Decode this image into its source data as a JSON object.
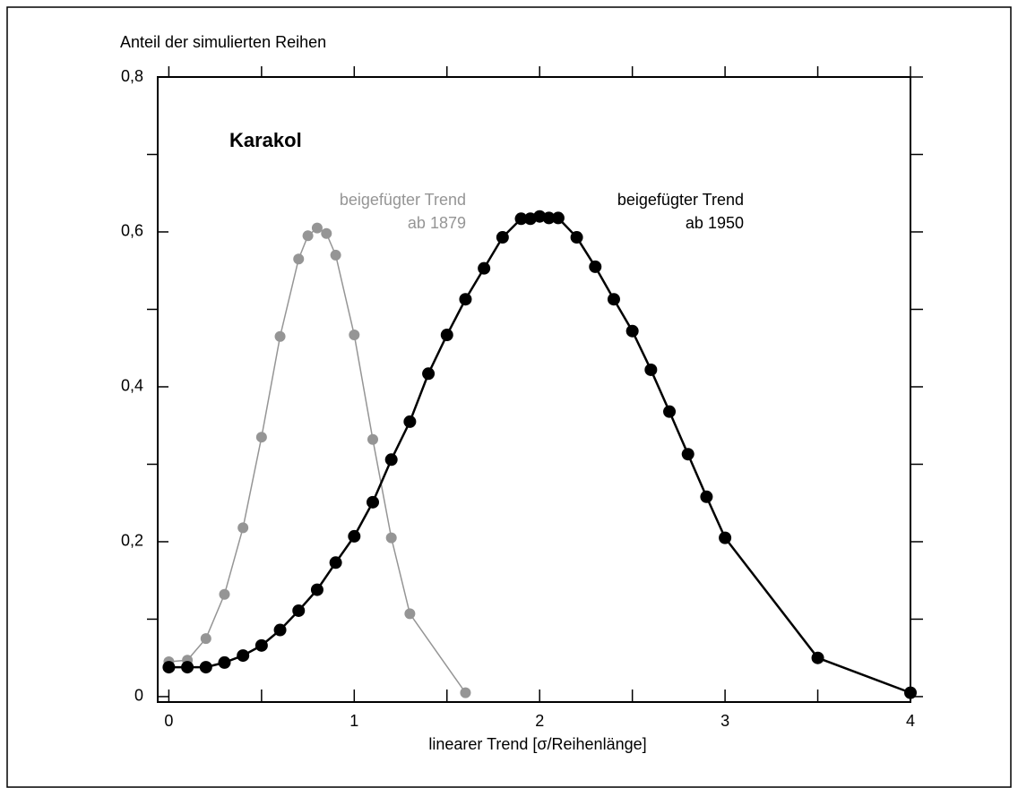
{
  "chart_data": {
    "type": "line",
    "title": "Karakol",
    "ylabel": "Anteil der simulierten Reihen",
    "xlabel": "linearer Trend [σ/Reihenlänge]",
    "xlim": [
      -0.06,
      4
    ],
    "ylim": [
      -0.007,
      0.8
    ],
    "xticks": [
      0,
      1,
      2,
      3,
      4
    ],
    "xminorticks": [
      0.5,
      1.5,
      2.5,
      3.5
    ],
    "yticks": [
      0,
      {
        "value": 0.2,
        "label": "0,2"
      },
      {
        "value": 0.4,
        "label": "0,4"
      },
      {
        "value": 0.6,
        "label": "0,6"
      },
      {
        "value": 0.8,
        "label": "0,8"
      }
    ],
    "yminorticks": [
      0.1,
      0.3,
      0.5,
      0.7
    ],
    "annotations": [
      {
        "lines": [
          "beigefügter Trend",
          "ab 1879"
        ],
        "color": "#959595"
      },
      {
        "lines": [
          "beigefügter Trend",
          "ab 1950"
        ],
        "color": "#000000"
      }
    ],
    "series": [
      {
        "color": "#959595",
        "x": [
          0,
          0.1,
          0.2,
          0.3,
          0.4,
          0.5,
          0.6,
          0.7,
          0.75,
          0.8,
          0.85,
          0.9,
          1.0,
          1.1,
          1.2,
          1.3,
          1.6
        ],
        "values": [
          0.045,
          0.047,
          0.075,
          0.132,
          0.218,
          0.335,
          0.465,
          0.565,
          0.595,
          0.605,
          0.598,
          0.57,
          0.467,
          0.332,
          0.205,
          0.107,
          0.005
        ]
      },
      {
        "color": "#000000",
        "x": [
          0,
          0.1,
          0.2,
          0.3,
          0.4,
          0.5,
          0.6,
          0.7,
          0.8,
          0.9,
          1.0,
          1.1,
          1.2,
          1.3,
          1.4,
          1.5,
          1.6,
          1.7,
          1.8,
          1.9,
          1.95,
          2.0,
          2.05,
          2.1,
          2.2,
          2.3,
          2.4,
          2.5,
          2.6,
          2.7,
          2.8,
          2.9,
          3.0,
          3.5,
          4.0
        ],
        "values": [
          0.038,
          0.038,
          0.038,
          0.044,
          0.053,
          0.066,
          0.086,
          0.111,
          0.138,
          0.173,
          0.207,
          0.251,
          0.306,
          0.355,
          0.417,
          0.467,
          0.513,
          0.553,
          0.593,
          0.617,
          0.617,
          0.62,
          0.618,
          0.618,
          0.593,
          0.555,
          0.513,
          0.472,
          0.422,
          0.368,
          0.313,
          0.258,
          0.205,
          0.05,
          0.005
        ]
      }
    ]
  }
}
